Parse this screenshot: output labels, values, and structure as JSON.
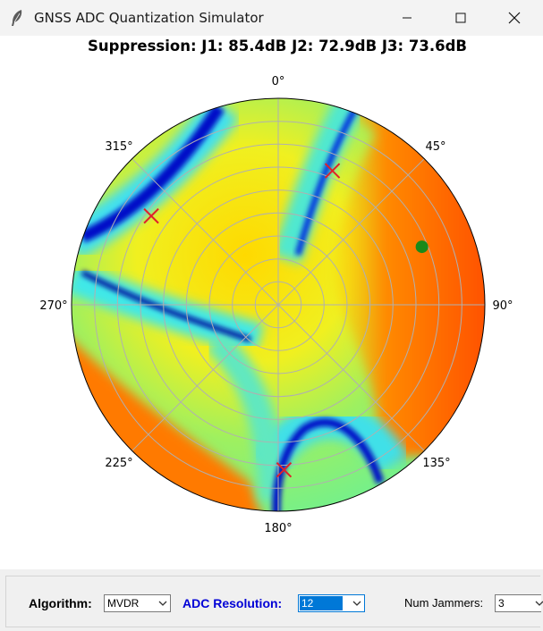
{
  "window": {
    "title": "GNSS ADC Quantization Simulator",
    "controls": {
      "minimize": "minimize",
      "maximize": "maximize",
      "close": "close"
    }
  },
  "plot": {
    "title_partial": "...g.../",
    "suppression_line": "Suppression: J1: 85.4dB  J2: 72.9dB  J3: 73.6dB",
    "angle_labels": [
      "0°",
      "45°",
      "90°",
      "135°",
      "180°",
      "225°",
      "270°",
      "315°"
    ],
    "markers": {
      "jammers": [
        {
          "name": "J1",
          "azimuth_deg": 22,
          "radius_frac": 0.7
        },
        {
          "name": "J2",
          "azimuth_deg": 305,
          "radius_frac": 0.75
        },
        {
          "name": "J3",
          "azimuth_deg": 178,
          "radius_frac": 0.8
        }
      ],
      "satellite": {
        "azimuth_deg": 68,
        "radius_frac": 0.75
      }
    },
    "colors": {
      "jammer": "#e0202a",
      "satellite": "#1a8a1a",
      "grid": "#b0b0b0"
    }
  },
  "controls_panel": {
    "algorithm_label": "Algorithm:",
    "algorithm_value": "MVDR",
    "adc_label": "ADC Resolution:",
    "adc_value": "12",
    "jammers_label": "Num Jammers:",
    "jammers_value": "3"
  }
}
